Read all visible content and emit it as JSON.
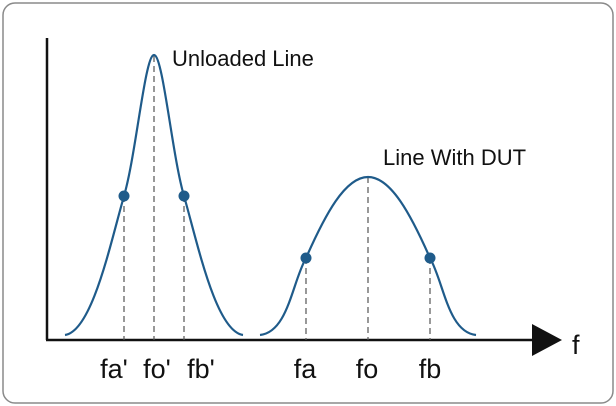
{
  "curves": [
    {
      "label": "Unloaded Line",
      "ticks": [
        "fa'",
        "fo'",
        "fb'"
      ]
    },
    {
      "label": "Line With DUT",
      "ticks": [
        "fa",
        "fo",
        "fb"
      ]
    }
  ],
  "axis_label": "f"
}
